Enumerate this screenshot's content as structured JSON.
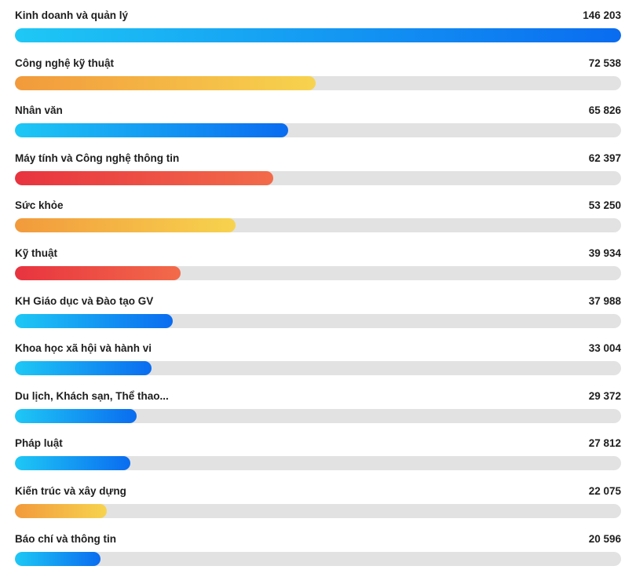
{
  "chart_data": {
    "type": "bar",
    "orientation": "horizontal",
    "title": "",
    "xlabel": "",
    "ylabel": "",
    "grid": false,
    "legend": "none",
    "xlim": [
      0,
      146203
    ],
    "categories": [
      "Kinh doanh và quản lý",
      "Công nghệ kỹ thuật",
      "Nhân văn",
      "Máy tính và Công nghệ thông tin",
      "Sức khỏe",
      "Kỹ thuật",
      "KH Giáo dục và Đào tạo GV",
      "Khoa học xã hội và hành vi",
      "Du lịch, Khách sạn, Thể thao...",
      "Pháp luật",
      "Kiến trúc và xây dựng",
      "Báo chí và thông tin"
    ],
    "values": [
      146203,
      72538,
      65826,
      62397,
      53250,
      39934,
      37988,
      33004,
      29372,
      27812,
      22075,
      20596
    ],
    "value_labels": [
      "146 203",
      "72 538",
      "65 826",
      "62 397",
      "53 250",
      "39 934",
      "37 988",
      "33 004",
      "29 372",
      "27 812",
      "22 075",
      "20 596"
    ],
    "bar_colors": [
      "blue",
      "orange",
      "blue",
      "red",
      "orange",
      "red",
      "blue",
      "blue",
      "blue",
      "blue",
      "orange",
      "blue"
    ]
  },
  "palette": {
    "blue": [
      "#1ec8f5",
      "#0a6cf0"
    ],
    "orange": [
      "#f29a3c",
      "#f7d34e"
    ],
    "red": [
      "#e8333f",
      "#f26b4a"
    ],
    "track": "#e2e2e2",
    "text": "#1e1e1e"
  }
}
